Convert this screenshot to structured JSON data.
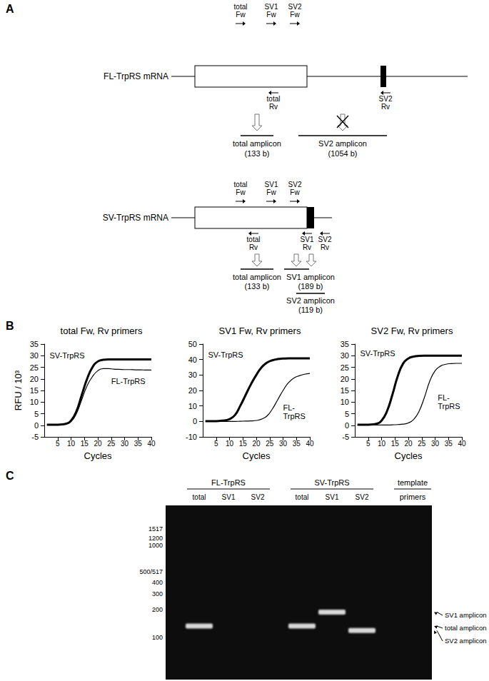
{
  "panel_labels": [
    "A",
    "B",
    "C"
  ],
  "panel_a": {
    "transcripts": [
      {
        "name": "FL-TrpRS mRNA",
        "forward_primers": [
          "total Fw",
          "SV1 Fw",
          "SV2 Fw"
        ],
        "reverse_primers": [
          "total Rv",
          "SV2 Rv"
        ],
        "amplicons": [
          {
            "name": "total amplicon",
            "size": "(133 b)",
            "amplified": true
          },
          {
            "name": "SV2 amplicon",
            "size": "(1054 b)",
            "amplified": false
          }
        ]
      },
      {
        "name": "SV-TrpRS mRNA",
        "forward_primers": [
          "total Fw",
          "SV1 Fw",
          "SV2 Fw"
        ],
        "reverse_primers": [
          "total Rv",
          "SV1 Rv",
          "SV2 Rv"
        ],
        "amplicons": [
          {
            "name": "total amplicon",
            "size": "(133 b)",
            "amplified": true
          },
          {
            "name": "SV1 amplicon",
            "size": "(189 b)",
            "amplified": true
          },
          {
            "name": "SV2 amplicon",
            "size": "(119 b)",
            "amplified": true
          }
        ]
      }
    ]
  },
  "chart_data": [
    {
      "type": "line",
      "title": "total Fw, Rv primers",
      "xlabel": "Cycles",
      "ylabel": "RFU / 10³",
      "x": [
        1,
        4,
        6,
        8,
        10,
        12,
        14,
        16,
        18,
        20,
        22,
        24,
        26,
        28,
        30,
        32,
        34,
        36,
        38,
        40
      ],
      "series": [
        {
          "name": "SV-TrpRS",
          "color": "#000000",
          "line_style": "bold",
          "values": [
            0.2,
            0.2,
            0.3,
            0.6,
            2,
            6,
            13,
            20,
            25,
            27.5,
            28.2,
            28.4,
            28.4,
            28.4,
            28.4,
            28.4,
            28.4,
            28.4,
            28.4,
            28.4
          ]
        },
        {
          "name": "FL-TrpRS",
          "color": "#000000",
          "line_style": "thin",
          "values": [
            0.2,
            0.2,
            0.3,
            0.5,
            1.6,
            5,
            11,
            17,
            21,
            23.5,
            24.4,
            24.4,
            24.2,
            24.1,
            24,
            24,
            23.9,
            23.9,
            23.8,
            23.8
          ]
        }
      ],
      "xlim": [
        0,
        40
      ],
      "xticks": [
        5,
        10,
        15,
        20,
        25,
        30,
        35,
        40
      ],
      "ylim": [
        -5,
        35
      ],
      "yticks": [
        -5,
        0,
        5,
        10,
        15,
        20,
        25,
        30,
        35
      ],
      "grid": false
    },
    {
      "type": "line",
      "title": "SV1 Fw, Rv primers",
      "xlabel": "Cycles",
      "x": [
        1,
        4,
        6,
        8,
        10,
        12,
        14,
        16,
        18,
        20,
        22,
        24,
        26,
        28,
        30,
        32,
        34,
        36,
        38,
        40
      ],
      "series": [
        {
          "name": "SV-TrpRS",
          "color": "#000000",
          "line_style": "bold",
          "values": [
            0.2,
            0.2,
            0.3,
            0.6,
            1.5,
            4,
            10,
            17,
            24,
            30,
            35,
            38,
            39.5,
            40.3,
            40.6,
            40.8,
            40.8,
            40.8,
            40.8,
            40.8
          ]
        },
        {
          "name": "FL-TrpRS",
          "color": "#000000",
          "line_style": "thin",
          "values": [
            0,
            0,
            0,
            0,
            0,
            0,
            0.1,
            0.2,
            0.3,
            0.6,
            1.5,
            3.5,
            8,
            14,
            20,
            25,
            28,
            29.5,
            30.5,
            31
          ]
        }
      ],
      "xlim": [
        0,
        40
      ],
      "xticks": [
        5,
        10,
        15,
        20,
        25,
        30,
        35,
        40
      ],
      "ylim": [
        -10,
        50
      ],
      "yticks": [
        -10,
        0,
        10,
        20,
        30,
        40,
        50
      ],
      "grid": false
    },
    {
      "type": "line",
      "title": "SV2 Fw, Rv primers",
      "xlabel": "Cycles",
      "x": [
        1,
        4,
        6,
        8,
        10,
        12,
        14,
        16,
        18,
        20,
        22,
        24,
        26,
        28,
        30,
        32,
        34,
        36,
        38,
        40
      ],
      "series": [
        {
          "name": "SV-TrpRS",
          "color": "#000000",
          "line_style": "bold",
          "values": [
            0.2,
            0.2,
            0.3,
            0.6,
            2,
            6,
            13,
            21,
            26.5,
            28.8,
            29.6,
            29.9,
            30,
            30,
            30,
            30,
            30,
            30,
            30,
            30
          ]
        },
        {
          "name": "FL-TrpRS",
          "color": "#000000",
          "line_style": "thin",
          "values": [
            0.1,
            0.1,
            0.1,
            0.1,
            0.1,
            0.1,
            0.2,
            0.3,
            0.5,
            1,
            2.5,
            6,
            12,
            19,
            23.5,
            25.5,
            26.3,
            26.6,
            26.7,
            26.7
          ]
        }
      ],
      "xlim": [
        0,
        40
      ],
      "xticks": [
        5,
        10,
        15,
        20,
        25,
        30,
        35,
        40
      ],
      "ylim": [
        -5,
        35
      ],
      "yticks": [
        -5,
        0,
        5,
        10,
        15,
        20,
        25,
        30,
        35
      ],
      "grid": false
    }
  ],
  "panel_c": {
    "template_label": "template",
    "primers_label": "primers",
    "groups": [
      {
        "template": "FL-TrpRS",
        "lanes": [
          {
            "primers": "total",
            "band": 133
          },
          {
            "primers": "SV1",
            "band": null
          },
          {
            "primers": "SV2",
            "band": null
          }
        ]
      },
      {
        "template": "SV-TrpRS",
        "lanes": [
          {
            "primers": "total",
            "band": 133
          },
          {
            "primers": "SV1",
            "band": 189
          },
          {
            "primers": "SV2",
            "band": 119
          }
        ]
      }
    ],
    "ladder": [
      1517,
      1200,
      1000,
      {
        "value": 517,
        "label": "500/517"
      },
      400,
      300,
      200,
      100
    ],
    "band_labels": [
      {
        "text": "SV1 amplicon",
        "size": 189
      },
      {
        "text": "total amplicon",
        "size": 133
      },
      {
        "text": "SV2 amplicon",
        "size": 119
      }
    ]
  }
}
